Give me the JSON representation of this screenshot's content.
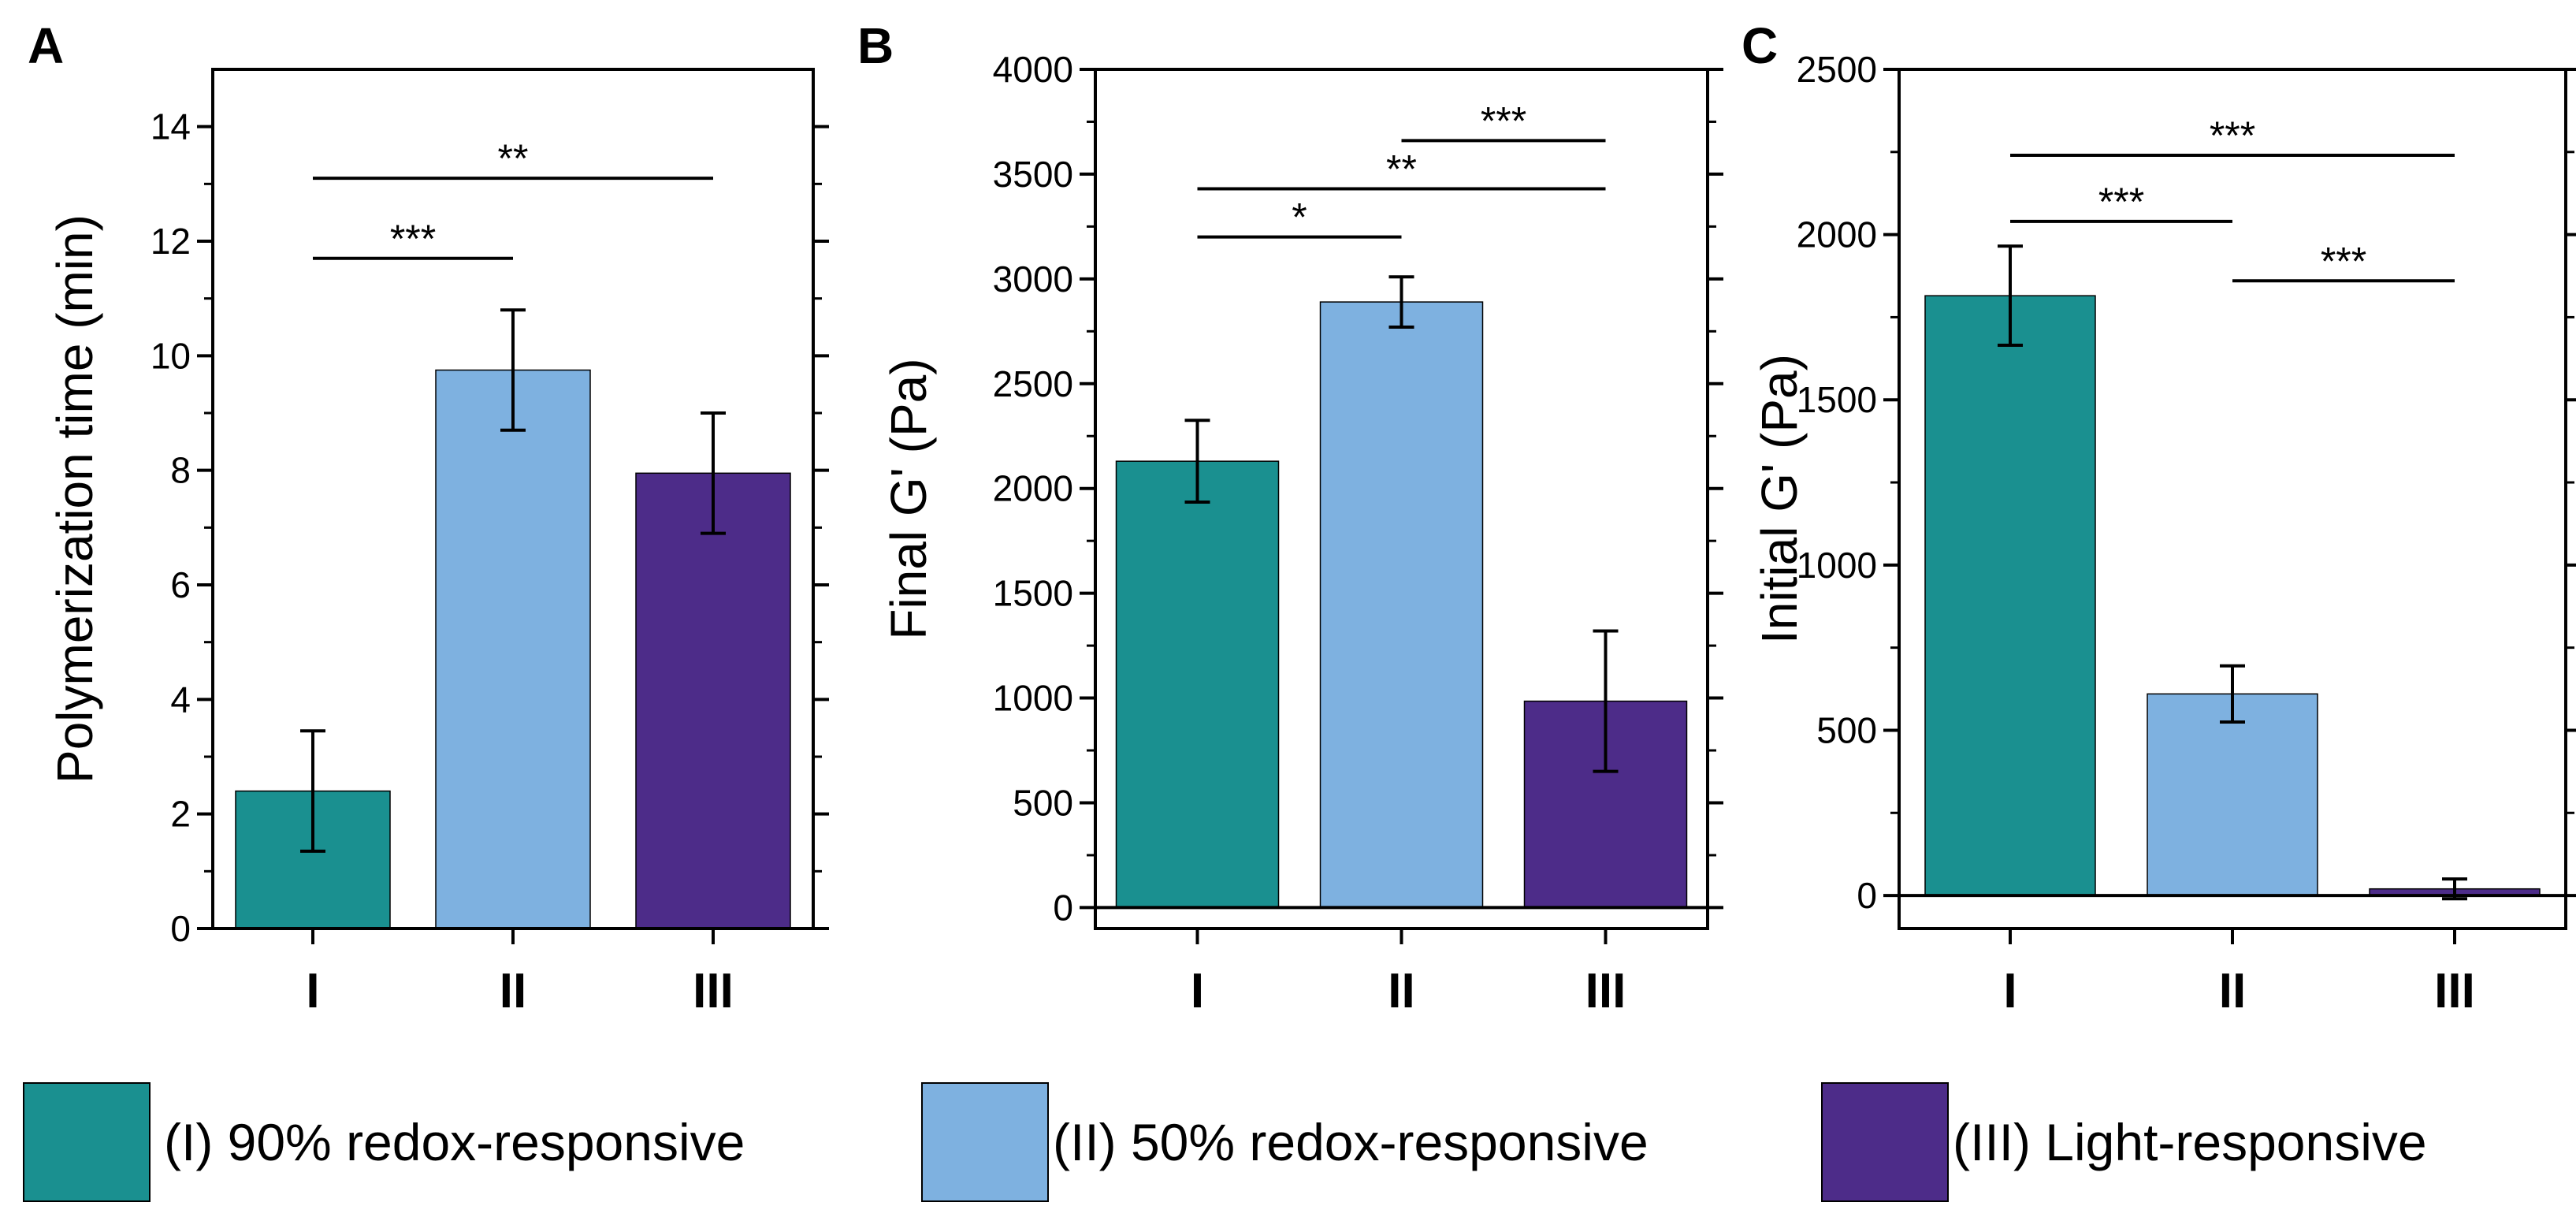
{
  "chart_data": [
    {
      "panel": "A",
      "type": "bar",
      "ylabel": "Polymerization time (min)",
      "categories": [
        "I",
        "II",
        "III"
      ],
      "values": [
        2.4,
        9.75,
        7.95
      ],
      "errors": [
        1.05,
        1.05,
        1.05
      ],
      "ylim": [
        0,
        15
      ],
      "yticks": [
        0,
        2,
        4,
        6,
        8,
        10,
        12,
        14
      ],
      "significance": [
        {
          "from": 0,
          "to": 1,
          "label": "***",
          "y": 11.7
        },
        {
          "from": 0,
          "to": 2,
          "label": "**",
          "y": 13.1
        }
      ]
    },
    {
      "panel": "B",
      "type": "bar",
      "ylabel": "Final G' (Pa)",
      "categories": [
        "I",
        "II",
        "III"
      ],
      "values": [
        2130,
        2890,
        985
      ],
      "errors": [
        195,
        120,
        335
      ],
      "ylim": [
        -100,
        4000
      ],
      "yticks": [
        0,
        500,
        1000,
        1500,
        2000,
        2500,
        3000,
        3500,
        4000
      ],
      "significance": [
        {
          "from": 0,
          "to": 1,
          "label": "*",
          "y": 3200
        },
        {
          "from": 0,
          "to": 2,
          "label": "**",
          "y": 3430
        },
        {
          "from": 1,
          "to": 2,
          "label": "***",
          "y": 3660
        }
      ]
    },
    {
      "panel": "C",
      "type": "bar",
      "ylabel": "Initial G' (Pa)",
      "categories": [
        "I",
        "II",
        "III"
      ],
      "values": [
        1815,
        610,
        20
      ],
      "errors": [
        150,
        85,
        30
      ],
      "ylim": [
        -100,
        2500
      ],
      "yticks": [
        0,
        500,
        1000,
        1500,
        2000,
        2500
      ],
      "significance": [
        {
          "from": 0,
          "to": 1,
          "label": "***",
          "y": 2040
        },
        {
          "from": 0,
          "to": 2,
          "label": "***",
          "y": 2240
        },
        {
          "from": 1,
          "to": 2,
          "label": "***",
          "y": 1860
        }
      ]
    }
  ],
  "legend": [
    {
      "label": "(I) 90% redox-responsive",
      "color": "#1a9090"
    },
    {
      "label": "(II) 50% redox-responsive",
      "color": "#7eb1e0"
    },
    {
      "label": "(III) Light-responsive",
      "color": "#4d2c89"
    }
  ],
  "colors": [
    "#1a9090",
    "#7eb1e0",
    "#4d2c89"
  ]
}
